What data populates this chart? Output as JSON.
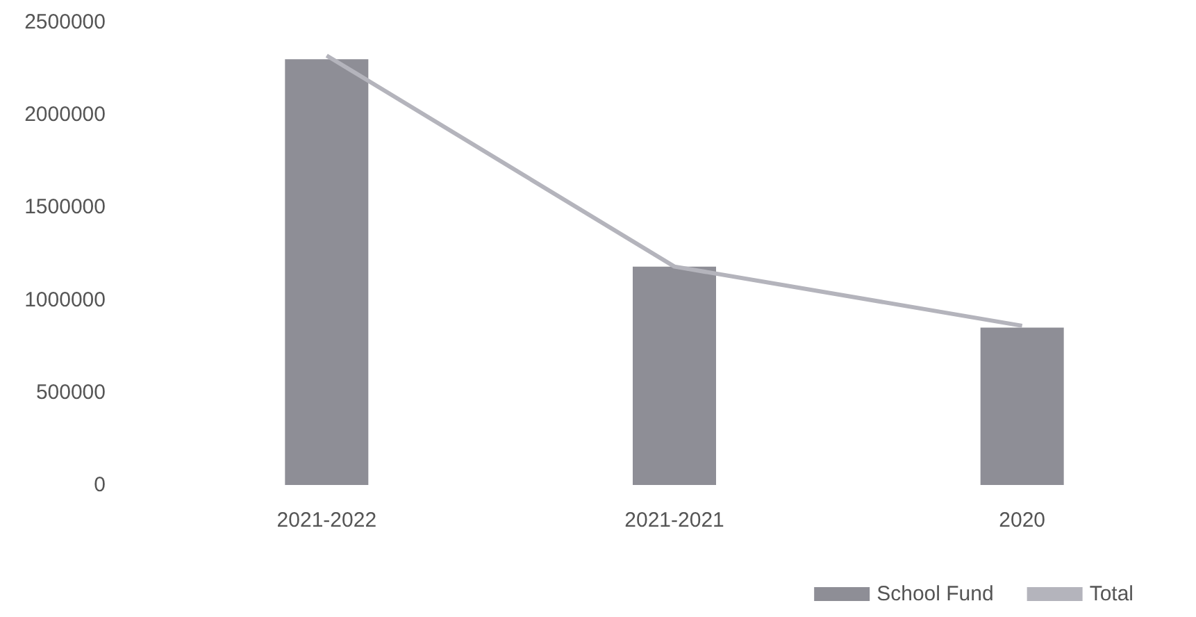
{
  "chart_data": {
    "type": "bar",
    "categories": [
      "2021-2022",
      "2021-2021",
      "2020"
    ],
    "series": [
      {
        "color": "#4d4d55",
        "values": [
          null,
          null,
          null
        ]
      },
      {
        "name": "School Fund",
        "color": "#8e8e96",
        "values": [
          2300000,
          1180000,
          850000
        ]
      },
      {
        "name": "Total",
        "type": "line",
        "color": "#b4b4bc",
        "values": [
          2320000,
          1180000,
          860000
        ]
      }
    ],
    "ylim": [
      0,
      2500000
    ],
    "yticks": [
      0,
      500000,
      1000000,
      1500000,
      2000000,
      2500000
    ],
    "grid": false,
    "legend": "bottom right",
    "marker": "none"
  }
}
